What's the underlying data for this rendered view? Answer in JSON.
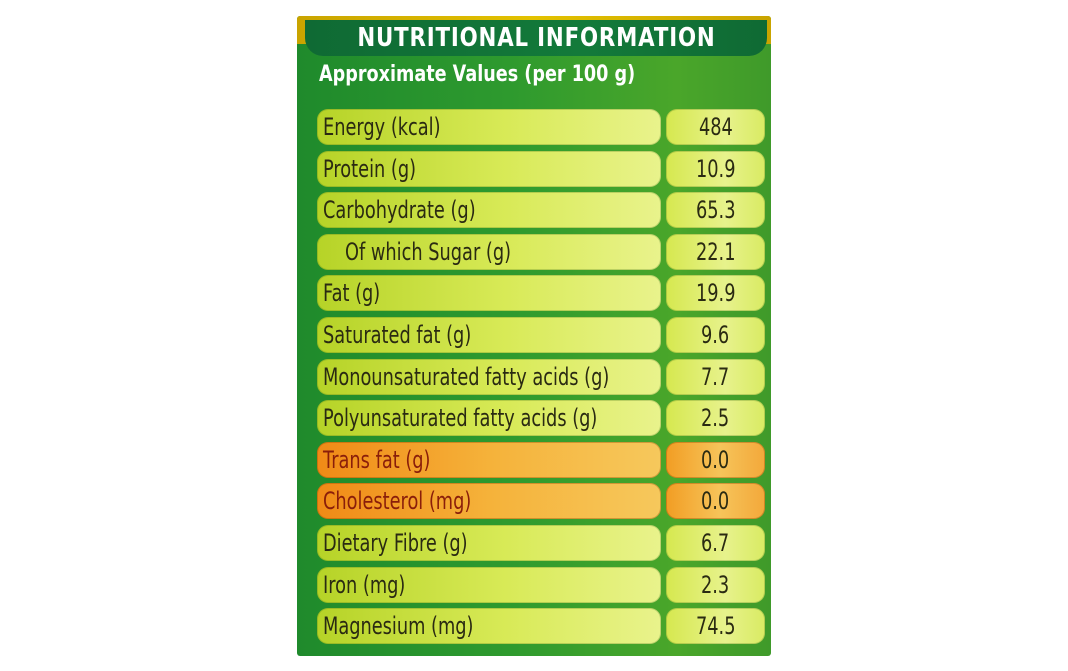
{
  "panel": {
    "title": "NUTRITIONAL INFORMATION",
    "subtitle": "Approximate Values (per 100 g)"
  },
  "rows": [
    {
      "label": "Energy (kcal)",
      "value": "484"
    },
    {
      "label": "Protein (g)",
      "value": "10.9"
    },
    {
      "label": "Carbohydrate (g)",
      "value": "65.3"
    },
    {
      "label": "Of which Sugar (g)",
      "value": "22.1"
    },
    {
      "label": "Fat (g)",
      "value": "19.9"
    },
    {
      "label": "Saturated fat (g)",
      "value": "9.6"
    },
    {
      "label": "Monounsaturated fatty acids (g)",
      "value": "7.7"
    },
    {
      "label": "Polyunsaturated fatty acids (g)",
      "value": "2.5"
    },
    {
      "label": "Trans fat (g)",
      "value": "0.0"
    },
    {
      "label": "Cholesterol (mg)",
      "value": "0.0"
    },
    {
      "label": "Dietary Fibre (g)",
      "value": "6.7"
    },
    {
      "label": "Iron (mg)",
      "value": "2.3"
    },
    {
      "label": "Magnesium (mg)",
      "value": "74.5"
    }
  ],
  "colors": {
    "panel_green": "#2e9a2e",
    "title_bar": "#137a3a",
    "row_green": "#d8ea57",
    "row_highlight": "#f5b23a"
  }
}
